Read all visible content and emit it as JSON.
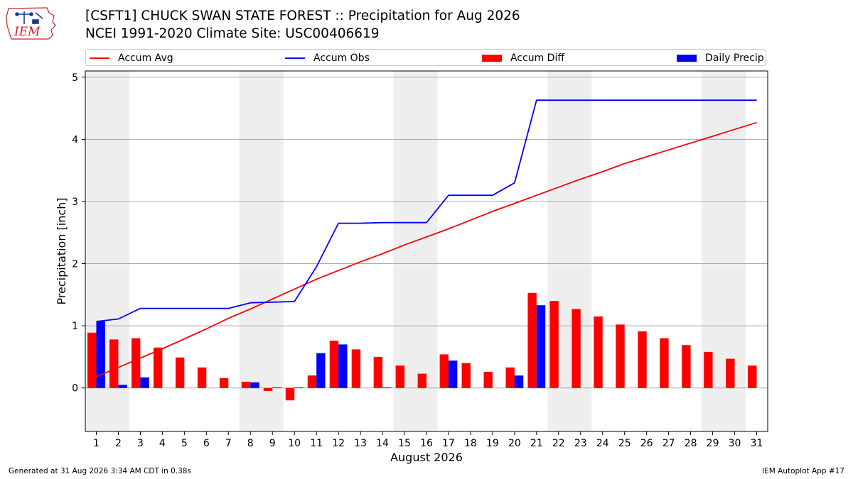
{
  "header": {
    "logo_text": "IEM",
    "title_line1": "[CSFT1] CHUCK SWAN STATE FOREST :: Precipitation for Aug 2026",
    "title_line2": "NCEI 1991-2020 Climate Site: USC00406619"
  },
  "footer": {
    "left": "Generated at 31 Aug 2026 3:34 AM CDT in 0.38s",
    "right": "IEM Autoplot App #17"
  },
  "colors": {
    "accum_avg": "#ff0000",
    "accum_obs": "#0000ff",
    "accum_diff": "#ff0000",
    "daily_precip": "#0000ff",
    "weekend_band": "#eeeeee",
    "grid": "#aaaaaa",
    "logo_red": "#cc2222",
    "logo_blue": "#1a3a8a"
  },
  "chart_data": {
    "type": "bar",
    "xlabel": "August 2026",
    "ylabel": "Precipitation [inch]",
    "x": [
      1,
      2,
      3,
      4,
      5,
      6,
      7,
      8,
      9,
      10,
      11,
      12,
      13,
      14,
      15,
      16,
      17,
      18,
      19,
      20,
      21,
      22,
      23,
      24,
      25,
      26,
      27,
      28,
      29,
      30,
      31
    ],
    "xlim": [
      0.5,
      31.5
    ],
    "ylim": [
      -0.7,
      5.1
    ],
    "yticks": [
      0,
      1,
      2,
      3,
      4,
      5
    ],
    "grid": true,
    "legend_position": "top",
    "weekend_bands": [
      [
        0.5,
        2.5
      ],
      [
        7.5,
        9.5
      ],
      [
        14.5,
        16.5
      ],
      [
        21.5,
        23.5
      ],
      [
        28.5,
        30.5
      ]
    ],
    "series": [
      {
        "name": "Accum Avg",
        "type": "line",
        "values": [
          0.18,
          0.33,
          0.48,
          0.63,
          0.79,
          0.95,
          1.12,
          1.27,
          1.43,
          1.59,
          1.75,
          1.89,
          2.03,
          2.16,
          2.3,
          2.43,
          2.56,
          2.7,
          2.84,
          2.97,
          3.1,
          3.23,
          3.36,
          3.48,
          3.61,
          3.72,
          3.83,
          3.94,
          4.05,
          4.16,
          4.27
        ]
      },
      {
        "name": "Accum Obs",
        "type": "line",
        "values": [
          1.07,
          1.11,
          1.28,
          1.28,
          1.28,
          1.28,
          1.28,
          1.37,
          1.38,
          1.39,
          1.95,
          2.65,
          2.65,
          2.66,
          2.66,
          2.66,
          3.1,
          3.1,
          3.1,
          3.3,
          4.63,
          4.63,
          4.63,
          4.63,
          4.63,
          4.63,
          4.63,
          4.63,
          4.63,
          4.63,
          4.63
        ]
      },
      {
        "name": "Accum Diff",
        "type": "bar",
        "values": [
          0.89,
          0.78,
          0.8,
          0.65,
          0.49,
          0.33,
          0.16,
          0.1,
          -0.05,
          -0.2,
          0.2,
          0.76,
          0.62,
          0.5,
          0.36,
          0.23,
          0.54,
          0.4,
          0.26,
          0.33,
          1.53,
          1.4,
          1.27,
          1.15,
          1.02,
          0.91,
          0.8,
          0.69,
          0.58,
          0.47,
          0.36
        ]
      },
      {
        "name": "Daily Precip",
        "type": "bar",
        "values": [
          1.07,
          0.05,
          0.17,
          0,
          0,
          0,
          0,
          0.09,
          0.01,
          0.01,
          0.56,
          0.7,
          0,
          0.01,
          0,
          0,
          0.44,
          0,
          0,
          0.2,
          1.33,
          0,
          0,
          0,
          0,
          0,
          0,
          0,
          0,
          0,
          0
        ]
      }
    ]
  }
}
